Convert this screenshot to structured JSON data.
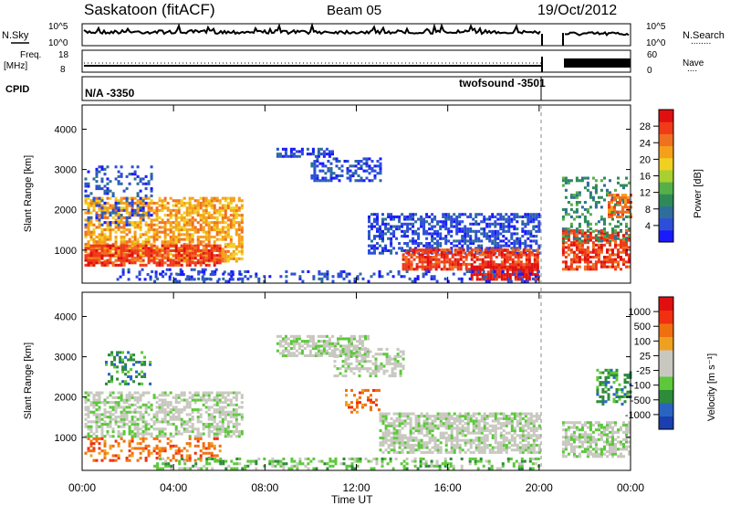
{
  "header": {
    "station": "Saskatoon (fitACF)",
    "beam": "Beam 05",
    "date": "19/Oct/2012"
  },
  "noise_panel": {
    "left_label": "N.Sky",
    "right_label": "N.Search",
    "right_marker": "........",
    "left_ticks": [
      "10^5",
      "10^0"
    ],
    "right_ticks": [
      "10^5",
      "10^0"
    ]
  },
  "freq_panel": {
    "left_label_line1": "Freq.",
    "left_label_line2": "[MHz]",
    "right_label": "Nave",
    "right_marker": "....",
    "left_ticks": [
      "18",
      "8"
    ],
    "right_ticks": [
      "60",
      "0"
    ]
  },
  "cpid_panel": {
    "label": "CPID",
    "mode1": "N/A -3350",
    "mode2": "twofsound -3501"
  },
  "chart_data": [
    {
      "type": "heatmap",
      "quantity": "Power",
      "ylabel": "Slant Range [km]",
      "yticks": [
        1000,
        2000,
        3000,
        4000
      ],
      "ylim": [
        180,
        4600
      ],
      "colorbar": {
        "label": "Power [dB]",
        "ticks": [
          "28",
          "24",
          "20",
          "16",
          "12",
          "8",
          "4"
        ],
        "colors": [
          "#1a1aff",
          "#2d4fd8",
          "#2f6e9a",
          "#2e8b57",
          "#55b04a",
          "#a8d030",
          "#f0d020",
          "#f4a01a",
          "#f07020",
          "#f03a1a",
          "#e01010"
        ]
      },
      "x_range_hours": [
        0,
        24
      ],
      "data_gap_hours": [
        20.0,
        21.0
      ]
    },
    {
      "type": "heatmap",
      "quantity": "Velocity",
      "ylabel": "Slant Range [km]",
      "yticks": [
        1000,
        2000,
        3000,
        4000
      ],
      "ylim": [
        180,
        4600
      ],
      "colorbar": {
        "label": "Velocity [m s⁻¹]",
        "ticks": [
          "1000",
          "500",
          "100",
          "25",
          "-25",
          "-100",
          "-500",
          "-1000"
        ],
        "colors": [
          "#1a3fb0",
          "#2a64c0",
          "#2e8b3a",
          "#5cc83a",
          "#c8c8c0",
          "#c8c8c0",
          "#f0a020",
          "#f07010",
          "#f03010",
          "#e01010"
        ]
      },
      "x_range_hours": [
        0,
        24
      ],
      "data_gap_hours": [
        20.0,
        21.0
      ]
    }
  ],
  "xaxis": {
    "ticks": [
      "00:00",
      "04:00",
      "08:00",
      "12:00",
      "16:00",
      "20:00",
      "00:00"
    ],
    "label": "Time UT"
  }
}
